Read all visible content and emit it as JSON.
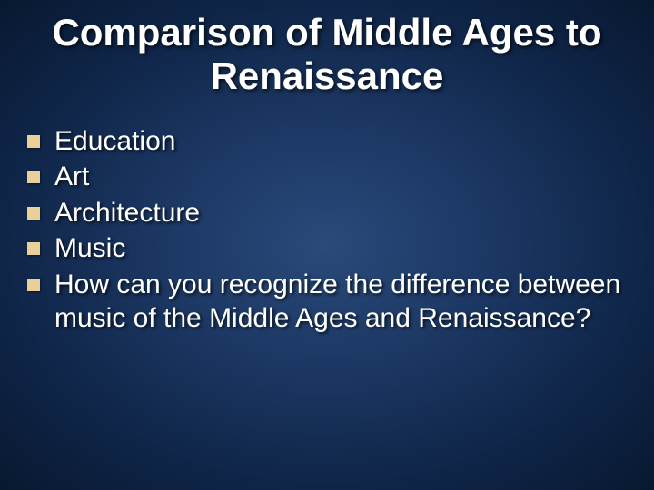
{
  "slide": {
    "title": "Comparison of Middle Ages to Renaissance",
    "title_color": "#ffffff",
    "title_fontsize": 42,
    "background_gradient": [
      "#2a4a7a",
      "#1a3560",
      "#0f2548",
      "#081830"
    ],
    "bullet_color": "#e8d098",
    "bullet_size": 14,
    "body_fontsize": 30,
    "body_color": "#ffffff",
    "items": [
      {
        "text": "Education"
      },
      {
        "text": "Art"
      },
      {
        "text": "Architecture"
      },
      {
        "text": "Music"
      },
      {
        "text": "How can you recognize the difference between music of the  Middle Ages and Renaissance?"
      }
    ]
  }
}
